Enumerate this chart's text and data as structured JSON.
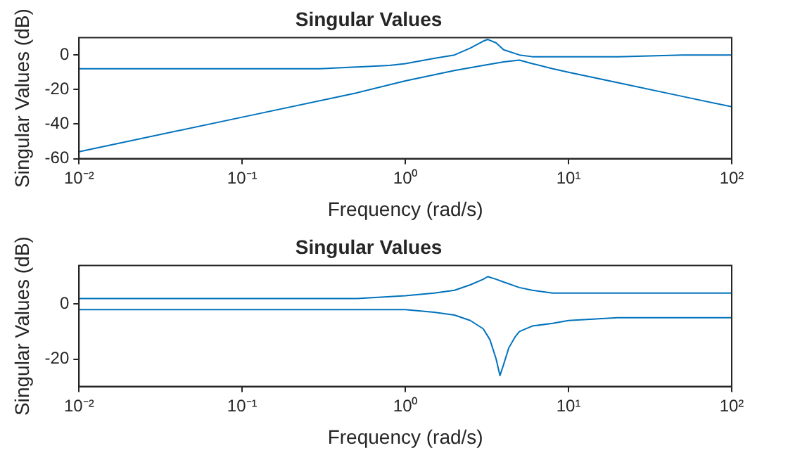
{
  "chart_data": [
    {
      "type": "line",
      "title": "Singular Values",
      "xlabel": "Frequency (rad/s)",
      "ylabel": "Singular Values (dB)",
      "log": "x",
      "xlim": [
        0.01,
        100
      ],
      "xticks": [
        {
          "value": 0.01,
          "label": "10⁻²"
        },
        {
          "value": 0.1,
          "label": "10⁻¹"
        },
        {
          "value": 1,
          "label": "10⁰"
        },
        {
          "value": 10,
          "label": "10¹"
        },
        {
          "value": 100,
          "label": "10²"
        }
      ],
      "ylim": [
        -60,
        10
      ],
      "yticks": [
        -60,
        -40,
        -20,
        0
      ],
      "marker": "none",
      "line_style": "solid",
      "series": [
        {
          "color": "#0072bd",
          "x": [
            0.01,
            0.1,
            0.3,
            0.5,
            0.8,
            1,
            1.5,
            2,
            2.5,
            3,
            3.2,
            3.6,
            4,
            5,
            6,
            8,
            10,
            20,
            50,
            100
          ],
          "values": [
            -8,
            -8,
            -8,
            -7,
            -6,
            -5,
            -2,
            0,
            4,
            8,
            9,
            7,
            3,
            0,
            -1,
            -1,
            -1,
            -1,
            0,
            0
          ]
        },
        {
          "color": "#0072bd",
          "x": [
            0.01,
            0.1,
            0.5,
            1,
            2,
            3,
            4,
            5,
            6,
            8,
            10,
            20,
            50,
            100
          ],
          "values": [
            -56,
            -36,
            -22,
            -15,
            -9,
            -6,
            -4,
            -3,
            -5,
            -8,
            -10,
            -16,
            -24,
            -30
          ]
        }
      ]
    },
    {
      "type": "line",
      "title": "Singular Values",
      "xlabel": "Frequency (rad/s)",
      "ylabel": "Singular Values (dB)",
      "log": "x",
      "xlim": [
        0.01,
        100
      ],
      "xticks": [
        {
          "value": 0.01,
          "label": "10⁻²"
        },
        {
          "value": 0.1,
          "label": "10⁻¹"
        },
        {
          "value": 1,
          "label": "10⁰"
        },
        {
          "value": 10,
          "label": "10¹"
        },
        {
          "value": 100,
          "label": "10²"
        }
      ],
      "ylim": [
        -30,
        14
      ],
      "yticks": [
        -20,
        0
      ],
      "marker": "none",
      "line_style": "solid",
      "series": [
        {
          "color": "#0072bd",
          "x": [
            0.01,
            0.1,
            0.5,
            1,
            1.5,
            2,
            2.5,
            3,
            3.2,
            3.6,
            4,
            5,
            6,
            8,
            10,
            20,
            50,
            100
          ],
          "values": [
            2,
            2,
            2,
            3,
            4,
            5,
            7,
            9,
            10,
            9,
            8,
            6,
            5,
            4,
            4,
            4,
            4,
            4
          ]
        },
        {
          "color": "#0072bd",
          "x": [
            0.01,
            0.1,
            0.5,
            1,
            1.5,
            2,
            2.5,
            3,
            3.3,
            3.6,
            3.8,
            4,
            4.3,
            4.7,
            5,
            6,
            8,
            10,
            20,
            50,
            100
          ],
          "values": [
            -2,
            -2,
            -2,
            -2,
            -3,
            -4,
            -6,
            -9,
            -13,
            -20,
            -26,
            -22,
            -16,
            -12,
            -10,
            -8,
            -7,
            -6,
            -5,
            -5,
            -5
          ]
        }
      ]
    }
  ]
}
